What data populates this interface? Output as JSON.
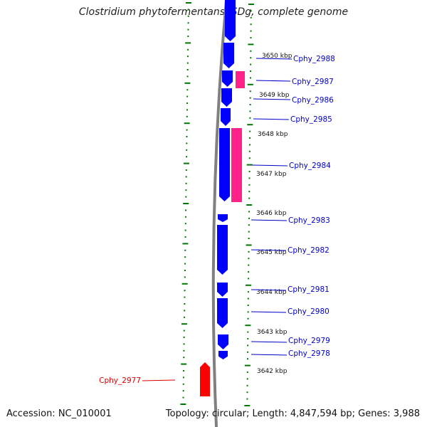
{
  "title": "Clostridium phytofermentans ISDg, complete genome",
  "footer": {
    "accession": "Accession: NC_010001",
    "summary": "Topology: circular; Length: 4,847,594 bp; Genes: 3,988"
  },
  "colors": {
    "forward_gene": "#0000ff",
    "reverse_gene_rna": "#ff2288",
    "highlight_gene": "#ff0000",
    "tick": "#007700",
    "backbone": "#808080",
    "label_blue": "#0000cc",
    "label_red": "#dd0000"
  },
  "kbp_ticks": [
    {
      "label": "3650 kbp"
    },
    {
      "label": "3649 kbp"
    },
    {
      "label": "3648 kbp"
    },
    {
      "label": "3647 kbp"
    },
    {
      "label": "3646 kbp"
    },
    {
      "label": "3645 kbp"
    },
    {
      "label": "3644 kbp"
    },
    {
      "label": "3643 kbp"
    },
    {
      "label": "3642 kbp"
    }
  ],
  "genes": [
    {
      "name": "Cphy_2988"
    },
    {
      "name": "Cphy_2987"
    },
    {
      "name": "Cphy_2986"
    },
    {
      "name": "Cphy_2985"
    },
    {
      "name": "Cphy_2984"
    },
    {
      "name": "Cphy_2983"
    },
    {
      "name": "Cphy_2982"
    },
    {
      "name": "Cphy_2981"
    },
    {
      "name": "Cphy_2980"
    },
    {
      "name": "Cphy_2979"
    },
    {
      "name": "Cphy_2978"
    },
    {
      "name": "Cphy_2977"
    }
  ]
}
